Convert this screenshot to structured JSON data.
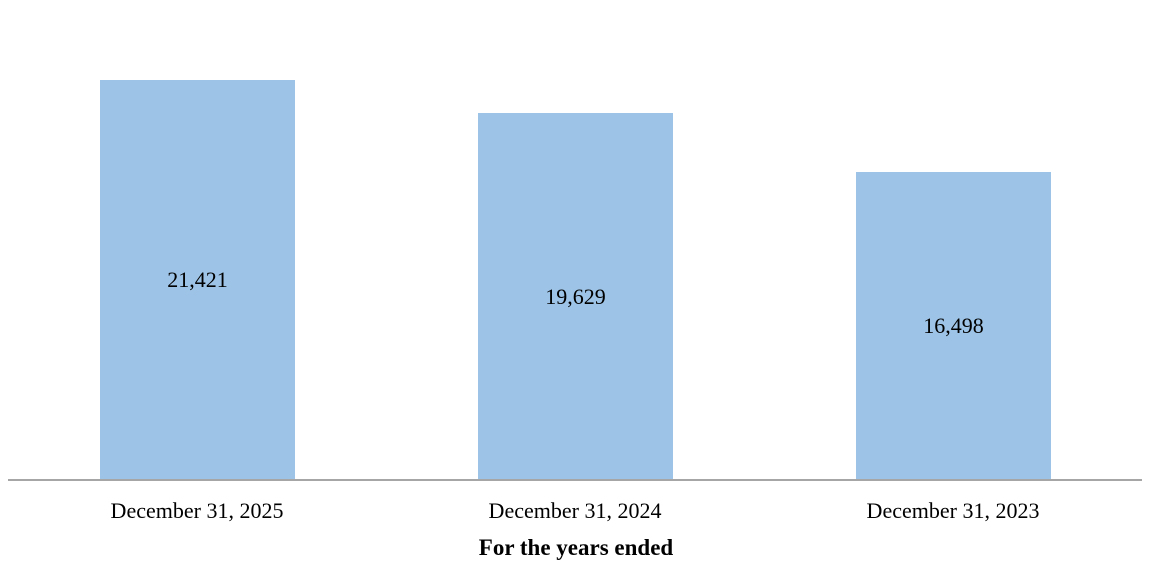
{
  "chart_data": {
    "type": "bar",
    "title": "",
    "categories": [
      "December 31, 2025",
      "December 31, 2024",
      "December 31, 2023"
    ],
    "values": [
      21421,
      19629,
      16498
    ],
    "value_labels": [
      "21,421",
      "19,629",
      "16,498"
    ],
    "xlabel": "For the years ended",
    "ylabel": "",
    "ylim": [
      0,
      25000
    ],
    "grid": false,
    "legend": false,
    "y_axis_visible": false,
    "data_label_position": "inside-center",
    "bar_color": "#9DC3E6",
    "axis_line_color": "#A6A6A6",
    "text_color": "#000000",
    "background_color": "#FFFFFF"
  }
}
